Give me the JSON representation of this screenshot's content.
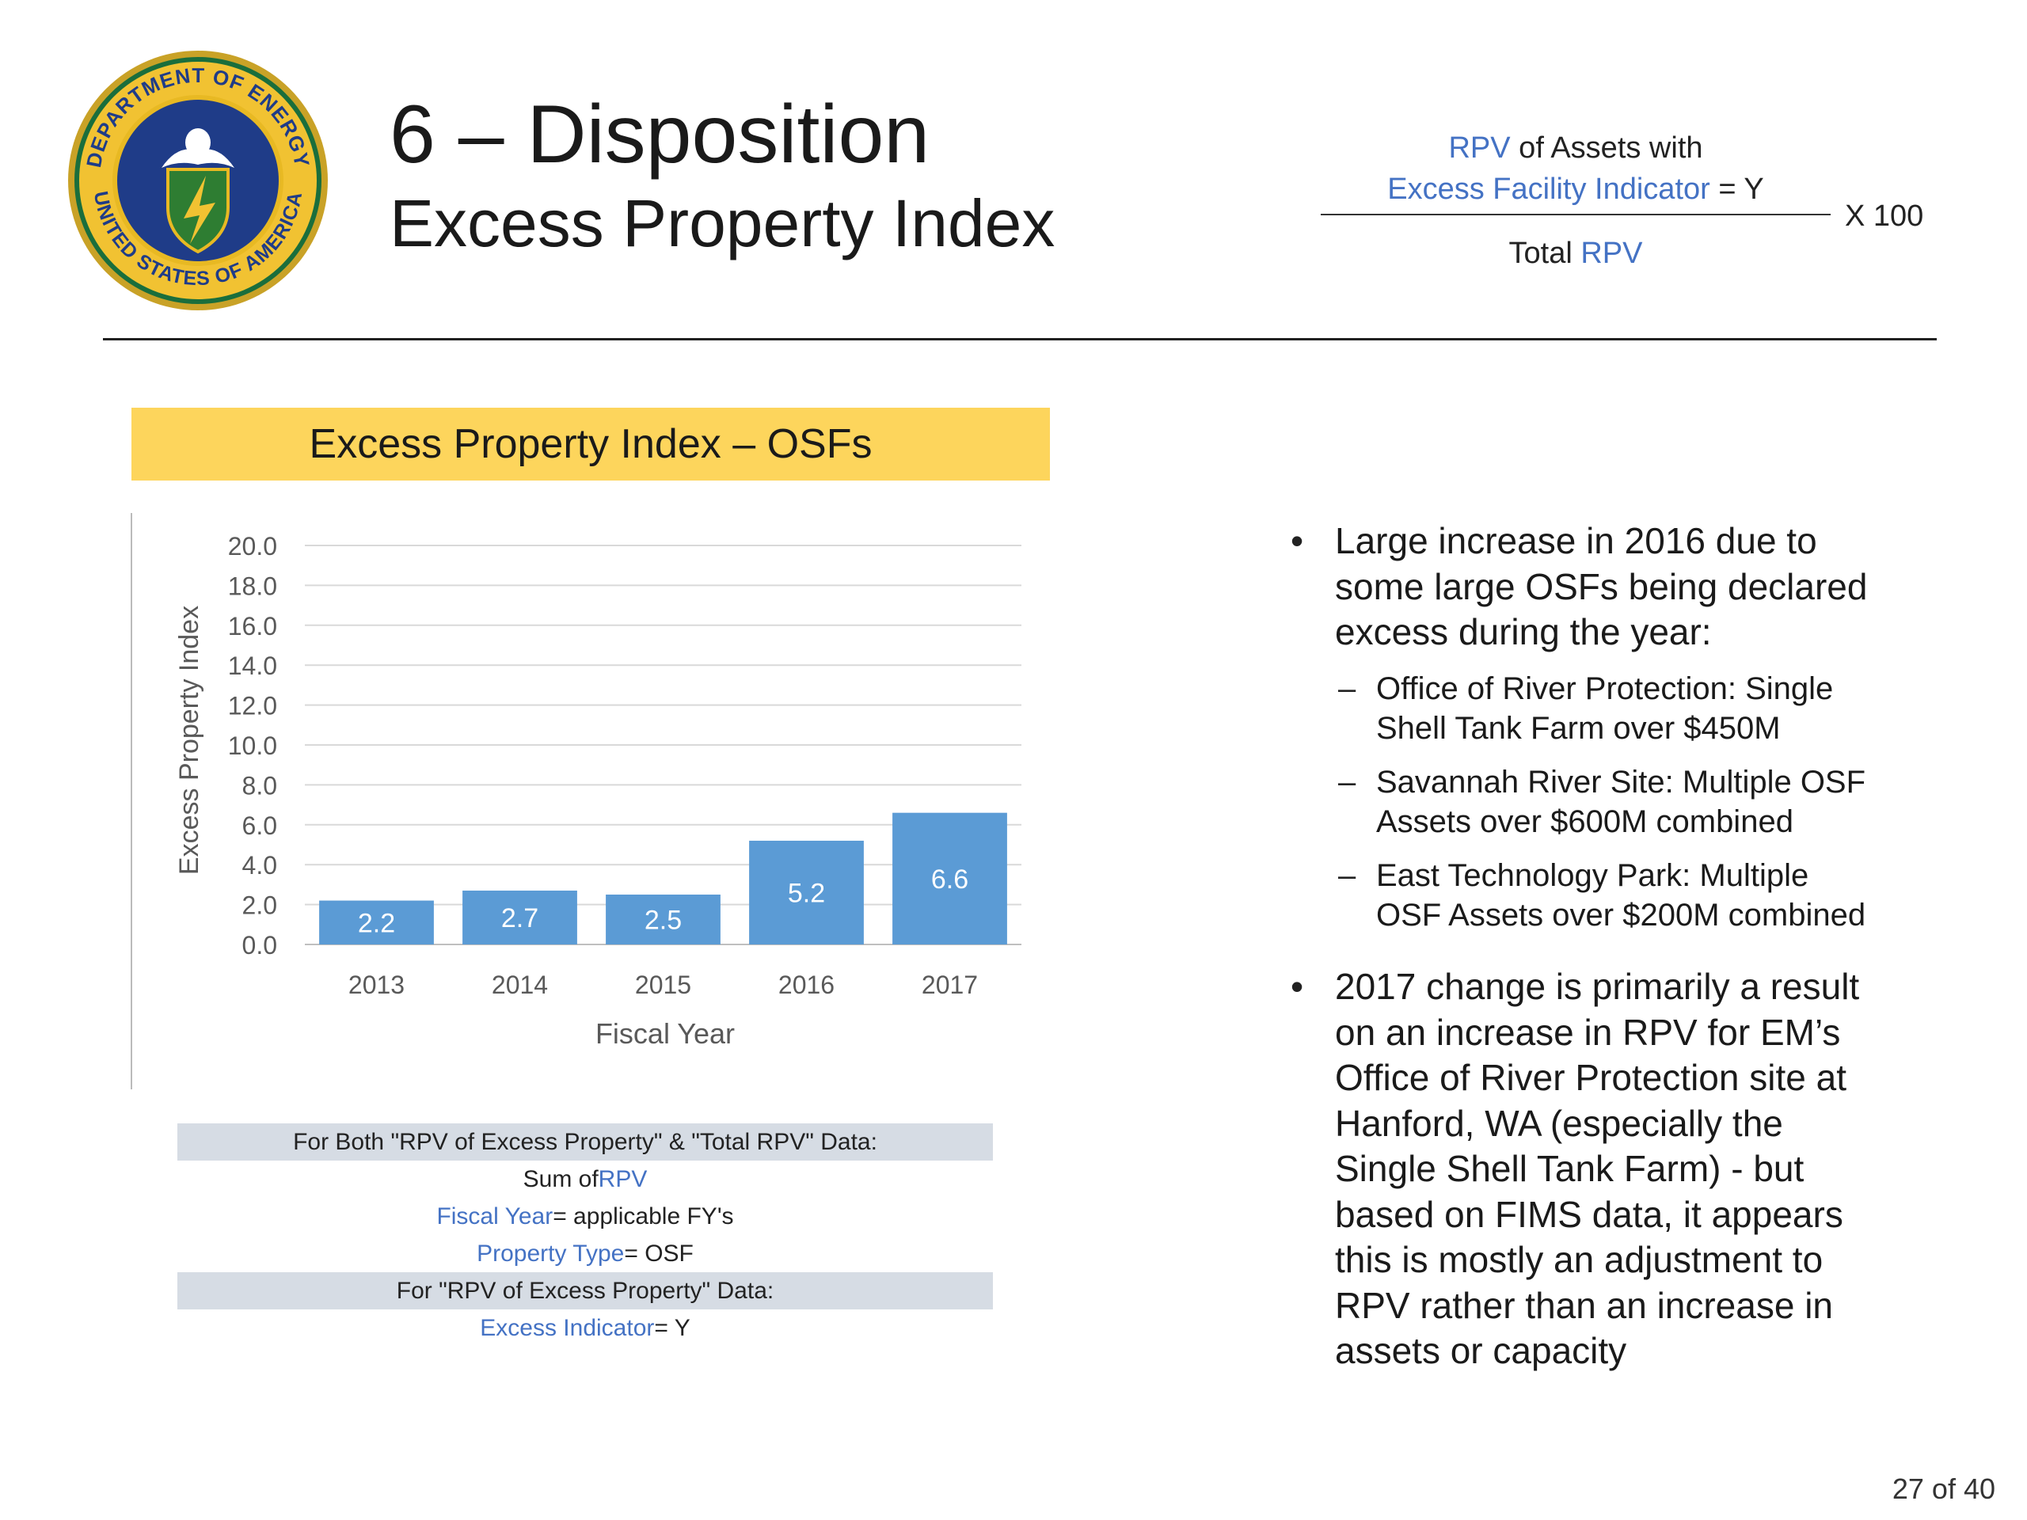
{
  "seal": {
    "top_text": "DEPARTMENT OF ENERGY",
    "bottom_text": "UNITED STATES OF AMERICA"
  },
  "title": {
    "main": "6 – Disposition",
    "sub": "Excess Property Index"
  },
  "formula": {
    "numerator_line1": {
      "term": "RPV",
      "rest": " of Assets with"
    },
    "numerator_line2": {
      "term": "Excess Facility Indicator",
      "rest": " = Y"
    },
    "denominator": {
      "prefix": "Total ",
      "term": "RPV"
    },
    "multiplier": "X  100"
  },
  "chart_banner": "Excess Property Index – OSFs",
  "chart_data": {
    "type": "bar",
    "categories": [
      "2013",
      "2014",
      "2015",
      "2016",
      "2017"
    ],
    "values": [
      2.2,
      2.7,
      2.5,
      5.2,
      6.6
    ],
    "data_labels": [
      "2.2",
      "2.7",
      "2.5",
      "5.2",
      "6.6"
    ],
    "title": "",
    "xlabel": "Fiscal Year",
    "ylabel": "Excess Property Index",
    "ylim": [
      0,
      20
    ],
    "yticks": [
      "0.0",
      "2.0",
      "4.0",
      "6.0",
      "8.0",
      "10.0",
      "12.0",
      "14.0",
      "16.0",
      "18.0",
      "20.0"
    ],
    "grid": true,
    "bar_color": "#5b9bd5",
    "label_color": "#ffffff"
  },
  "notes": {
    "header1": "For Both \"RPV of Excess Property\" & \"Total RPV\" Data:",
    "line1": {
      "prefix": "Sum of ",
      "term": "RPV",
      "rest": ""
    },
    "line2": {
      "prefix": "",
      "term": "Fiscal Year",
      "rest": " = applicable FY's"
    },
    "line3": {
      "prefix": "",
      "term": "Property Type",
      "rest": " = OSF"
    },
    "header2": "For \"RPV of Excess Property\" Data:",
    "line4": {
      "prefix": "",
      "term": "Excess Indicator",
      "rest": " = Y"
    }
  },
  "bullets": {
    "b1": {
      "lines": [
        "Large increase in 2016 due to",
        "some large OSFs being declared",
        "excess during the year:"
      ],
      "subs": [
        [
          "Office of River Protection:  Single",
          "Shell Tank Farm over $450M"
        ],
        [
          "Savannah River Site:  Multiple OSF",
          "Assets over $600M combined"
        ],
        [
          "East Technology Park: Multiple",
          "OSF Assets over $200M combined"
        ]
      ]
    },
    "b2": {
      "lines": [
        "2017 change is primarily a result",
        "on an increase in RPV for EM’s",
        "Office of River Protection site at",
        "Hanford, WA (especially the",
        "Single Shell Tank Farm) - but",
        "based on FIMS data, it appears",
        "this is mostly an adjustment to",
        "RPV rather than an increase in",
        "assets or capacity"
      ]
    }
  },
  "bullet_symbol": "•",
  "dash_symbol": "–",
  "page_number": "27 of 40",
  "colors": {
    "accent": "#4472c4",
    "banner": "#fdd55c",
    "note_shade": "#d6dce4"
  }
}
